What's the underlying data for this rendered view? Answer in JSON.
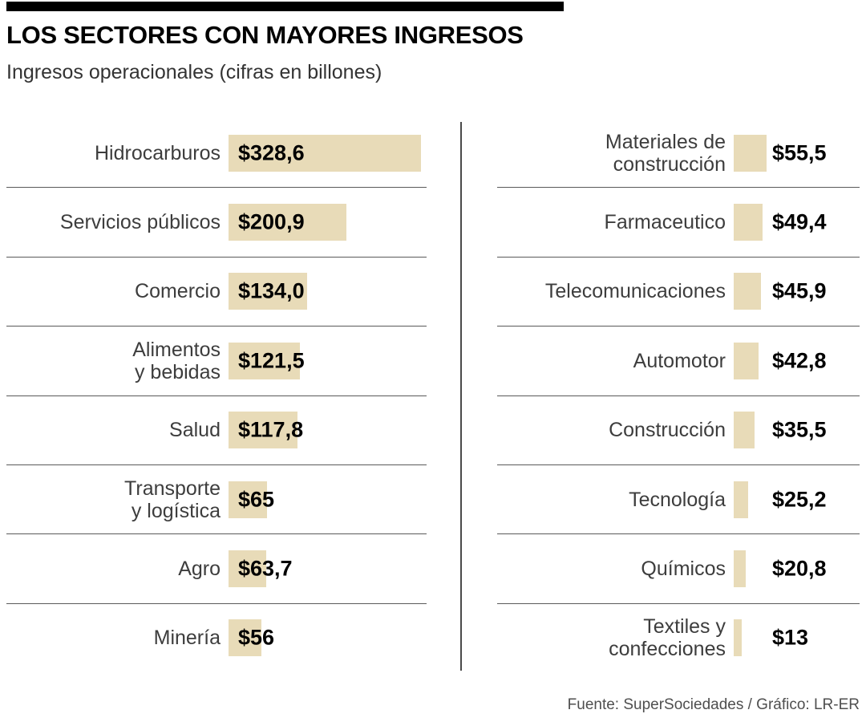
{
  "header": {
    "title": "LOS SECTORES CON MAYORES INGRESOS",
    "subtitle": "Ingresos operacionales (cifras en billones)"
  },
  "footer": {
    "source": "Fuente: SuperSociedades / Gráfico: LR-ER"
  },
  "colors": {
    "bar": "#e8dbb8",
    "rule": "#5a5a5a",
    "accent": "#000000"
  },
  "chart_data": {
    "type": "bar",
    "orientation": "horizontal",
    "title": "LOS SECTORES CON MAYORES INGRESOS",
    "subtitle": "Ingresos operacionales (cifras en billones)",
    "unit": "billones",
    "value_range": [
      0,
      328.6
    ],
    "max_value": 328.6,
    "grid": false,
    "legend": false,
    "columns": [
      {
        "name": "left",
        "rows": [
          {
            "label": "Hidrocarburos",
            "value": 328.6,
            "value_label": "$328,6"
          },
          {
            "label": "Servicios públicos",
            "value": 200.9,
            "value_label": "$200,9"
          },
          {
            "label": "Comercio",
            "value": 134.0,
            "value_label": "$134,0"
          },
          {
            "label": "Alimentos\ny bebidas",
            "value": 121.5,
            "value_label": "$121,5"
          },
          {
            "label": "Salud",
            "value": 117.8,
            "value_label": "$117,8"
          },
          {
            "label": "Transporte\ny logística",
            "value": 65,
            "value_label": "$65"
          },
          {
            "label": "Agro",
            "value": 63.7,
            "value_label": "$63,7"
          },
          {
            "label": "Minería",
            "value": 56,
            "value_label": "$56"
          }
        ]
      },
      {
        "name": "right",
        "rows": [
          {
            "label": "Materiales de\nconstrucción",
            "value": 55.5,
            "value_label": "$55,5"
          },
          {
            "label": "Farmaceutico",
            "value": 49.4,
            "value_label": "$49,4"
          },
          {
            "label": "Telecomunicaciones",
            "value": 45.9,
            "value_label": "$45,9"
          },
          {
            "label": "Automotor",
            "value": 42.8,
            "value_label": "$42,8"
          },
          {
            "label": "Construcción",
            "value": 35.5,
            "value_label": "$35,5"
          },
          {
            "label": "Tecnología",
            "value": 25.2,
            "value_label": "$25,2"
          },
          {
            "label": "Químicos",
            "value": 20.8,
            "value_label": "$20,8"
          },
          {
            "label": "Textiles y\nconfecciones",
            "value": 13,
            "value_label": "$13"
          }
        ]
      }
    ]
  }
}
